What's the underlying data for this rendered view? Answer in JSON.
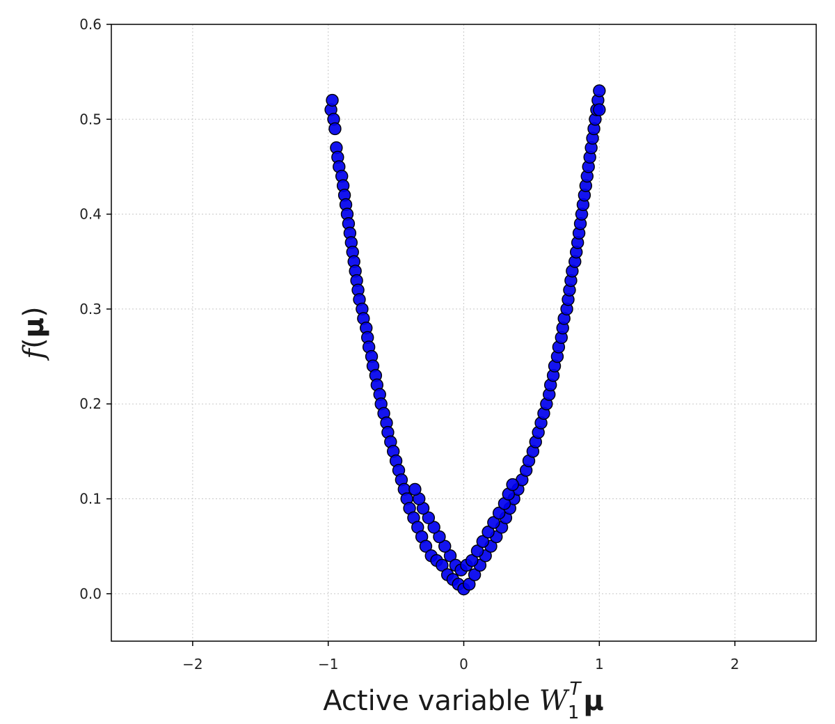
{
  "chart_data": {
    "type": "scatter",
    "title": "",
    "xlabel": {
      "prefix": "Active variable ",
      "symbol": "W",
      "subscript": "1",
      "superscript": "T",
      "vector": "μ"
    },
    "ylabel": {
      "func": "f",
      "open": "(",
      "vector": "μ",
      "close": ")"
    },
    "xlim": [
      -2.6,
      2.6
    ],
    "ylim": [
      -0.05,
      0.6
    ],
    "xticks": [
      -2,
      -1,
      0,
      1,
      2
    ],
    "xtick_labels": [
      "−2",
      "−1",
      "0",
      "1",
      "2"
    ],
    "yticks": [
      0.0,
      0.1,
      0.2,
      0.3,
      0.4,
      0.5,
      0.6
    ],
    "ytick_labels": [
      "0.0",
      "0.1",
      "0.2",
      "0.3",
      "0.4",
      "0.5",
      "0.6"
    ],
    "grid": true,
    "legend": "none",
    "marker_color": "#0000ee",
    "marker_edge_color": "#000000",
    "points": [
      [
        -0.98,
        0.51
      ],
      [
        -0.97,
        0.52
      ],
      [
        -0.96,
        0.5
      ],
      [
        -0.95,
        0.49
      ],
      [
        -0.94,
        0.47
      ],
      [
        -0.93,
        0.46
      ],
      [
        -0.92,
        0.45
      ],
      [
        -0.9,
        0.44
      ],
      [
        -0.89,
        0.43
      ],
      [
        -0.88,
        0.42
      ],
      [
        -0.87,
        0.41
      ],
      [
        -0.86,
        0.4
      ],
      [
        -0.85,
        0.39
      ],
      [
        -0.84,
        0.38
      ],
      [
        -0.83,
        0.37
      ],
      [
        -0.82,
        0.36
      ],
      [
        -0.81,
        0.35
      ],
      [
        -0.8,
        0.34
      ],
      [
        -0.79,
        0.33
      ],
      [
        -0.78,
        0.32
      ],
      [
        -0.77,
        0.31
      ],
      [
        -0.75,
        0.3
      ],
      [
        -0.74,
        0.29
      ],
      [
        -0.72,
        0.28
      ],
      [
        -0.71,
        0.27
      ],
      [
        -0.7,
        0.26
      ],
      [
        -0.68,
        0.25
      ],
      [
        -0.67,
        0.24
      ],
      [
        -0.65,
        0.23
      ],
      [
        -0.64,
        0.22
      ],
      [
        -0.62,
        0.21
      ],
      [
        -0.61,
        0.2
      ],
      [
        -0.59,
        0.19
      ],
      [
        -0.57,
        0.18
      ],
      [
        -0.56,
        0.17
      ],
      [
        -0.54,
        0.16
      ],
      [
        -0.52,
        0.15
      ],
      [
        -0.5,
        0.14
      ],
      [
        -0.48,
        0.13
      ],
      [
        -0.46,
        0.12
      ],
      [
        -0.44,
        0.11
      ],
      [
        -0.42,
        0.1
      ],
      [
        -0.4,
        0.09
      ],
      [
        -0.37,
        0.08
      ],
      [
        -0.34,
        0.07
      ],
      [
        -0.31,
        0.06
      ],
      [
        -0.28,
        0.05
      ],
      [
        -0.24,
        0.04
      ],
      [
        -0.2,
        0.035
      ],
      [
        -0.16,
        0.03
      ],
      [
        -0.12,
        0.02
      ],
      [
        -0.08,
        0.015
      ],
      [
        -0.04,
        0.01
      ],
      [
        0.0,
        0.005
      ],
      [
        0.04,
        0.01
      ],
      [
        0.08,
        0.02
      ],
      [
        0.12,
        0.03
      ],
      [
        0.16,
        0.04
      ],
      [
        0.2,
        0.05
      ],
      [
        0.24,
        0.06
      ],
      [
        0.28,
        0.07
      ],
      [
        0.31,
        0.08
      ],
      [
        0.34,
        0.09
      ],
      [
        0.37,
        0.1
      ],
      [
        0.4,
        0.11
      ],
      [
        0.43,
        0.12
      ],
      [
        0.46,
        0.13
      ],
      [
        0.48,
        0.14
      ],
      [
        0.51,
        0.15
      ],
      [
        0.53,
        0.16
      ],
      [
        0.55,
        0.17
      ],
      [
        0.57,
        0.18
      ],
      [
        0.59,
        0.19
      ],
      [
        0.61,
        0.2
      ],
      [
        0.63,
        0.21
      ],
      [
        0.64,
        0.22
      ],
      [
        0.66,
        0.23
      ],
      [
        0.67,
        0.24
      ],
      [
        0.69,
        0.25
      ],
      [
        0.7,
        0.26
      ],
      [
        0.72,
        0.27
      ],
      [
        0.73,
        0.28
      ],
      [
        0.74,
        0.29
      ],
      [
        0.76,
        0.3
      ],
      [
        0.77,
        0.31
      ],
      [
        0.78,
        0.32
      ],
      [
        0.79,
        0.33
      ],
      [
        0.8,
        0.34
      ],
      [
        0.82,
        0.35
      ],
      [
        0.83,
        0.36
      ],
      [
        0.84,
        0.37
      ],
      [
        0.85,
        0.38
      ],
      [
        0.86,
        0.39
      ],
      [
        0.87,
        0.4
      ],
      [
        0.88,
        0.41
      ],
      [
        0.89,
        0.42
      ],
      [
        0.9,
        0.43
      ],
      [
        0.91,
        0.44
      ],
      [
        0.92,
        0.45
      ],
      [
        0.93,
        0.46
      ],
      [
        0.94,
        0.47
      ],
      [
        0.95,
        0.48
      ],
      [
        0.96,
        0.49
      ],
      [
        0.97,
        0.5
      ],
      [
        0.98,
        0.51
      ],
      [
        0.99,
        0.52
      ],
      [
        1.0,
        0.53
      ],
      [
        1.0,
        0.51
      ],
      [
        -0.1,
        0.04
      ],
      [
        -0.06,
        0.03
      ],
      [
        -0.02,
        0.025
      ],
      [
        0.02,
        0.03
      ],
      [
        0.06,
        0.035
      ],
      [
        0.1,
        0.045
      ],
      [
        -0.14,
        0.05
      ],
      [
        0.14,
        0.055
      ],
      [
        -0.18,
        0.06
      ],
      [
        0.18,
        0.065
      ],
      [
        -0.22,
        0.07
      ],
      [
        0.22,
        0.075
      ],
      [
        -0.26,
        0.08
      ],
      [
        0.26,
        0.085
      ],
      [
        -0.3,
        0.09
      ],
      [
        0.3,
        0.095
      ],
      [
        -0.33,
        0.1
      ],
      [
        0.33,
        0.105
      ],
      [
        -0.36,
        0.11
      ],
      [
        0.36,
        0.115
      ]
    ]
  }
}
